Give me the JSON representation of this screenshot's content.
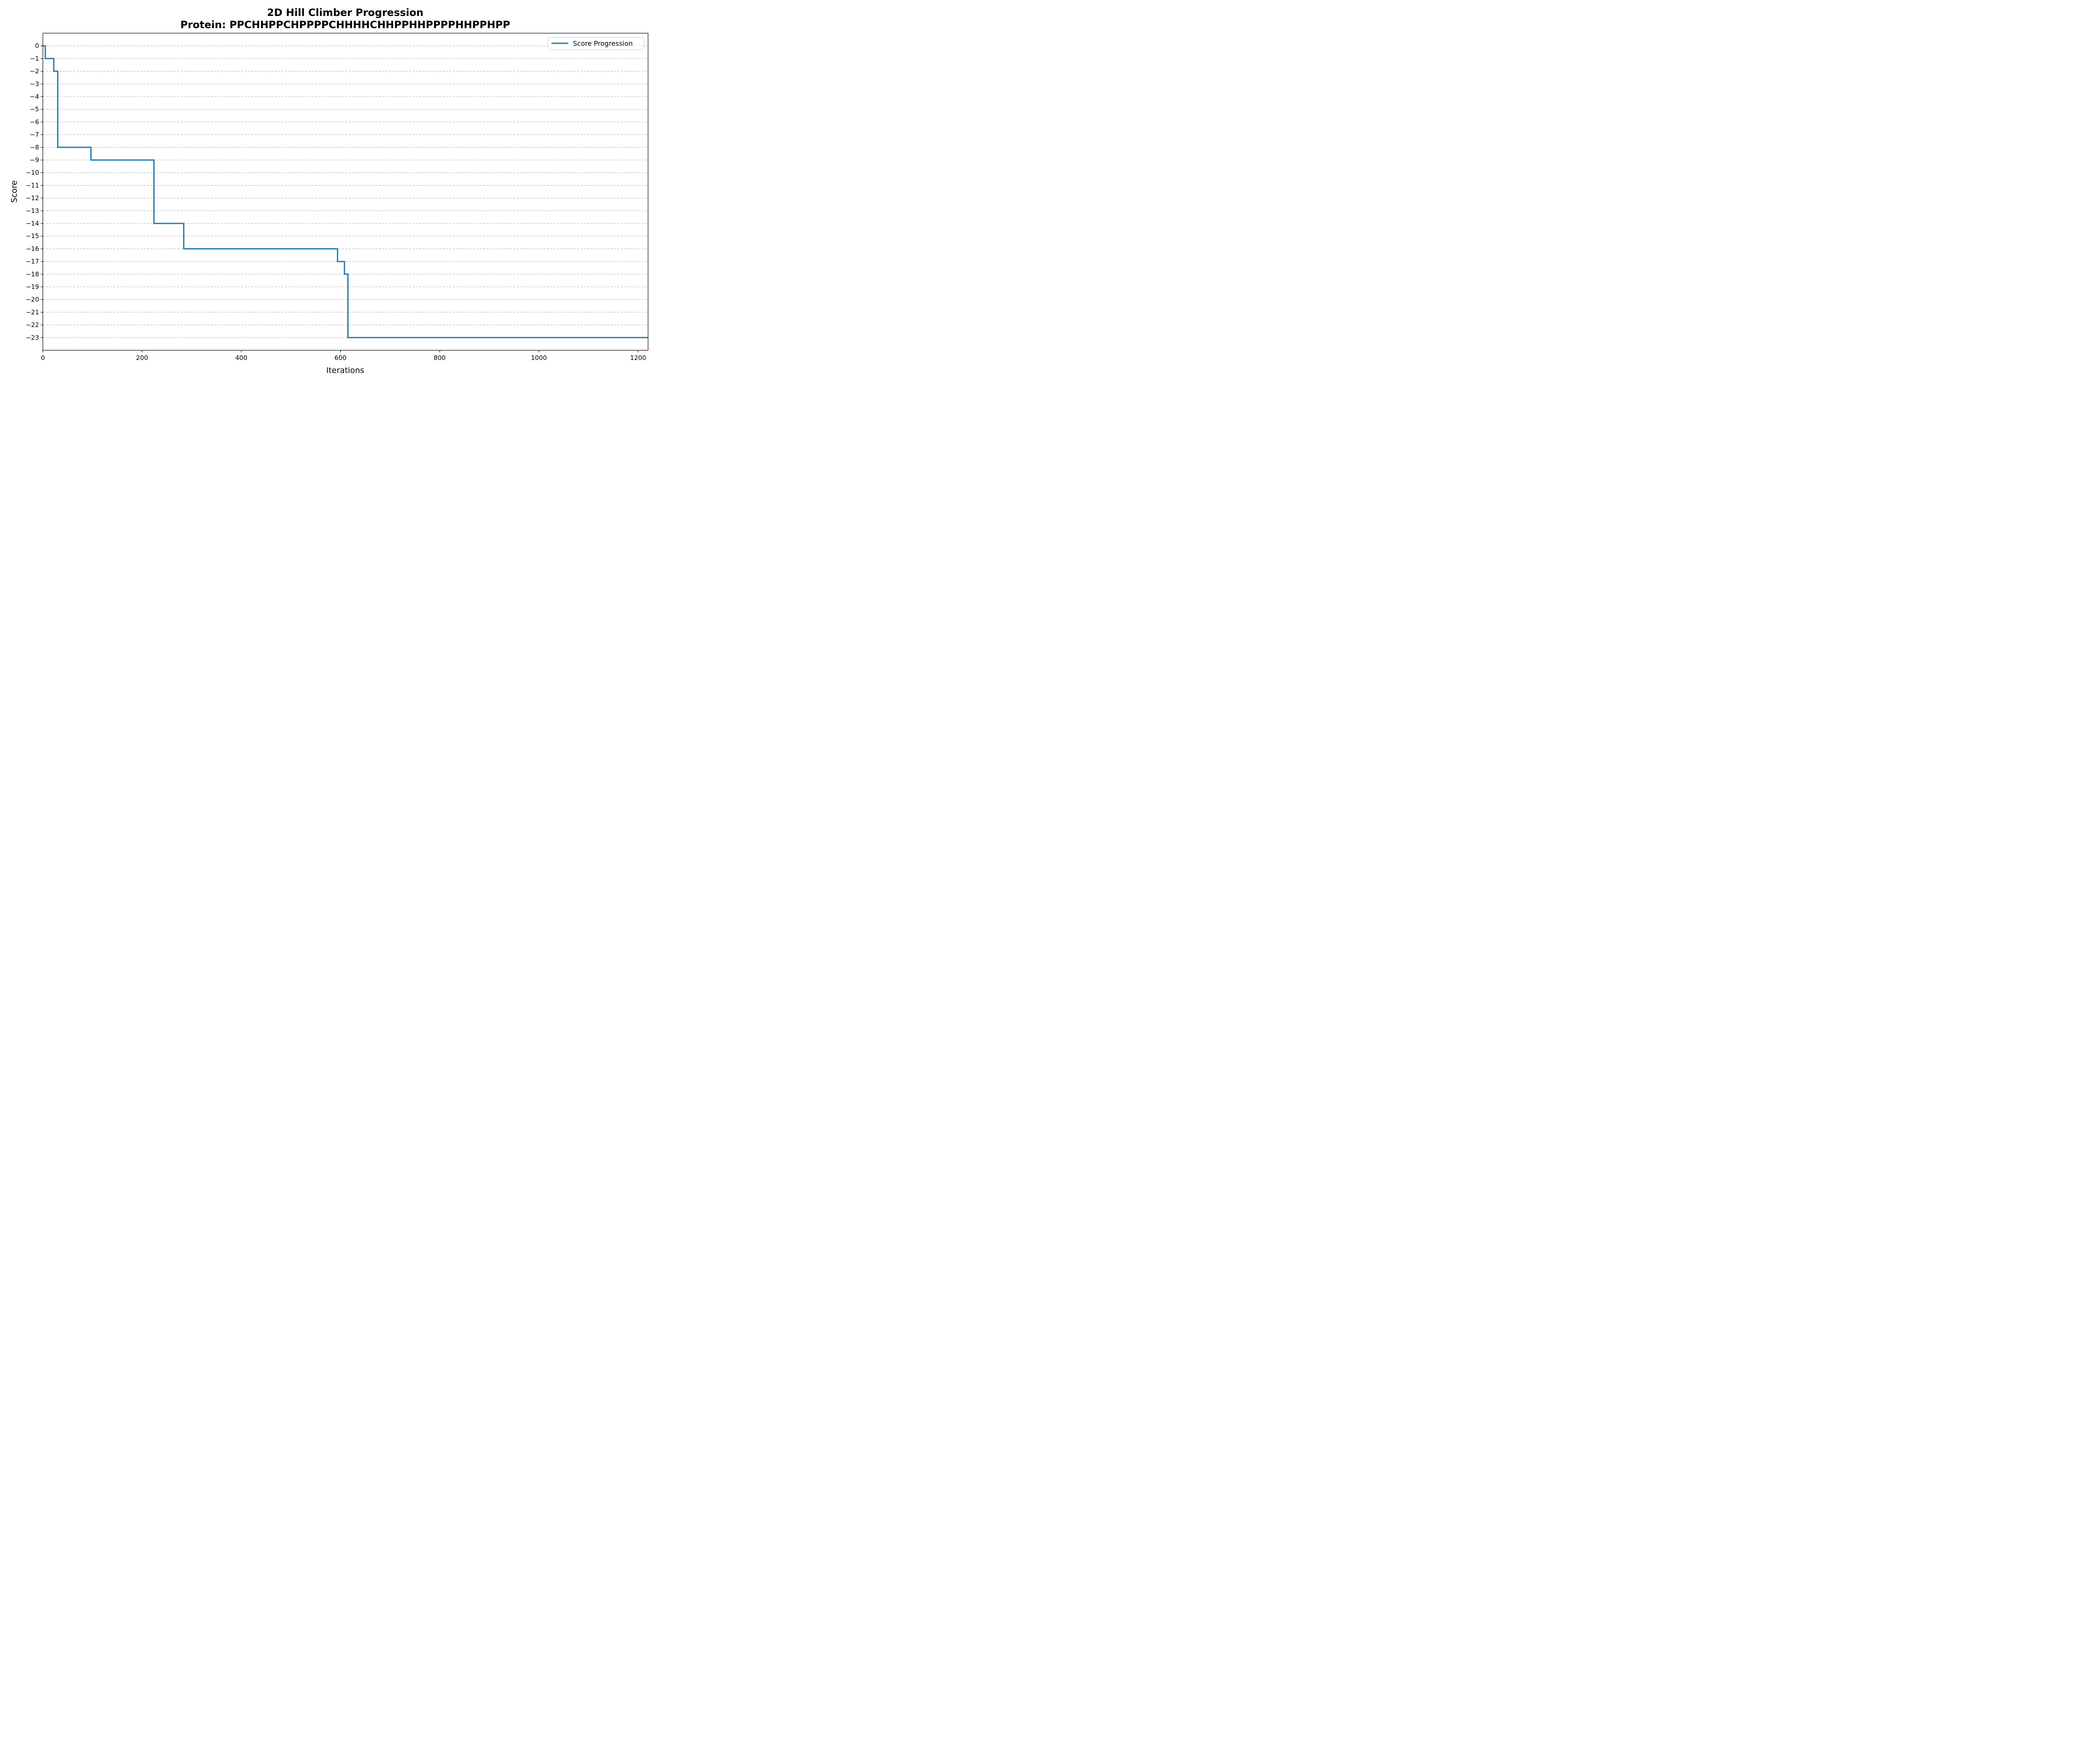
{
  "chart_data": {
    "type": "line",
    "title": "2D Hill Climber Progression",
    "subtitle": "Protein: PPCHHPPCHPPPPCHHHHCHHPPHHPPPPHHPPHPP",
    "xlabel": "Iterations",
    "ylabel": "Score",
    "xlim": [
      0,
      1220
    ],
    "ylim": [
      -24,
      1
    ],
    "x_ticks": [
      0,
      200,
      400,
      600,
      800,
      1000,
      1200
    ],
    "y_ticks": [
      0,
      -1,
      -2,
      -3,
      -4,
      -5,
      -6,
      -7,
      -8,
      -9,
      -10,
      -11,
      -12,
      -13,
      -14,
      -15,
      -16,
      -17,
      -18,
      -19,
      -20,
      -21,
      -22,
      -23
    ],
    "grid": "y-dashed",
    "legend_position": "top-right",
    "series": [
      {
        "name": "Score Progression",
        "color": "#1f77b4",
        "step": "post",
        "x": [
          0,
          5,
          22,
          28,
          30,
          97,
          224,
          284,
          594,
          608,
          615,
          1220
        ],
        "y": [
          0,
          -1,
          -2,
          -2,
          -8,
          -9,
          -14,
          -16,
          -17,
          -18,
          -23,
          -23
        ]
      }
    ]
  }
}
